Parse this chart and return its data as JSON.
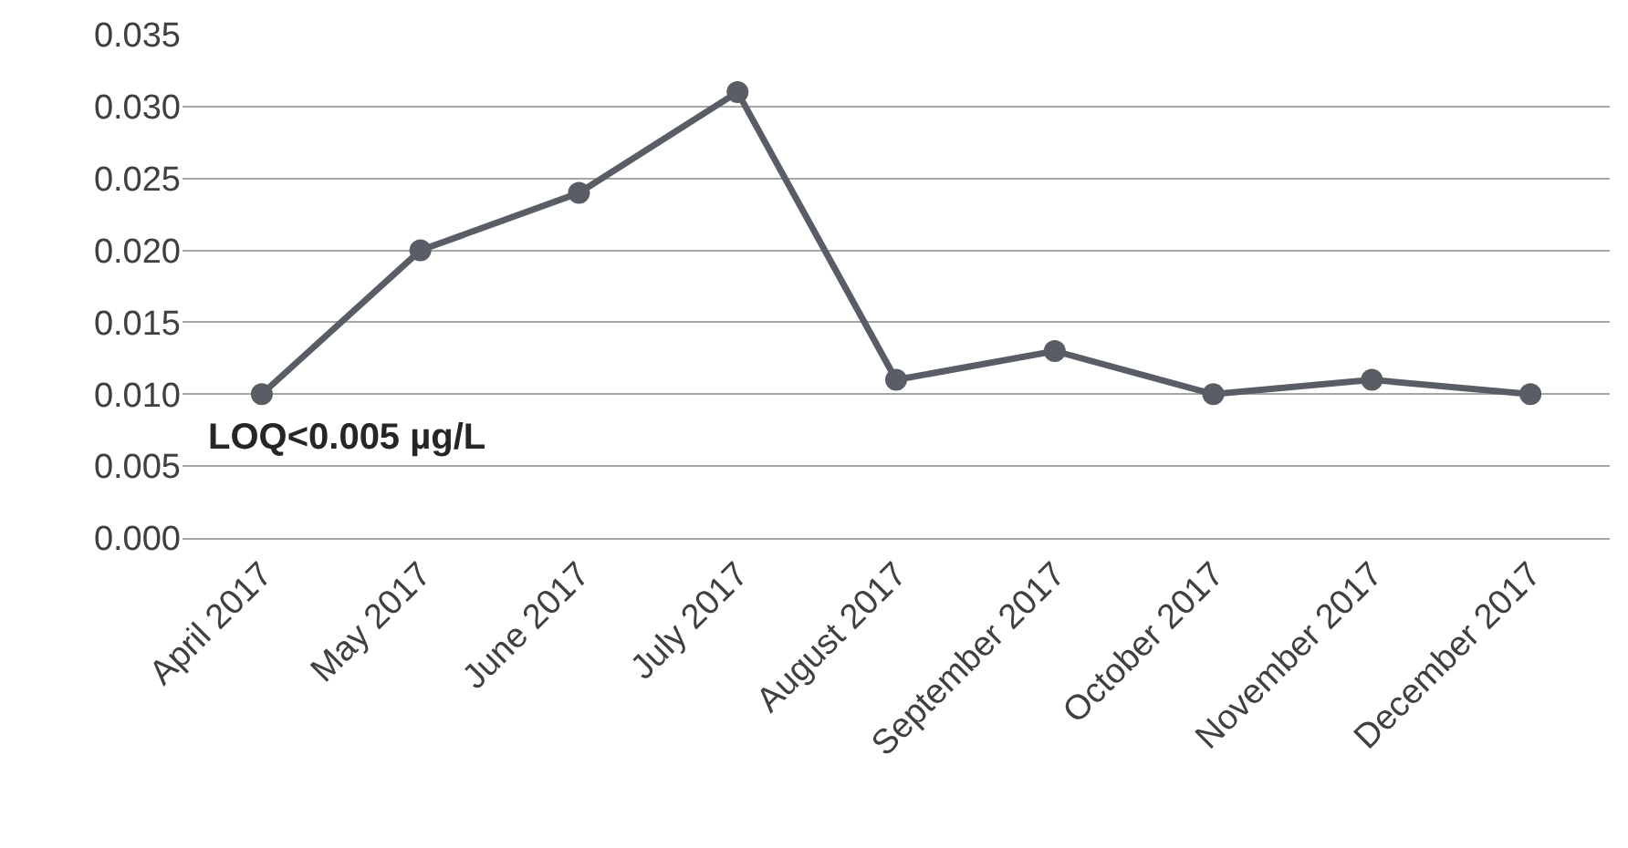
{
  "chart_data": {
    "type": "line",
    "categories": [
      "April 2017",
      "May 2017",
      "June 2017",
      "July 2017",
      "August 2017",
      "September 2017",
      "October 2017",
      "November 2017",
      "December 2017"
    ],
    "series": [
      {
        "color": "#595e66",
        "values": [
          0.01,
          0.02,
          0.024,
          0.031,
          0.011,
          0.013,
          0.01,
          0.011,
          0.01
        ]
      }
    ],
    "ylim": [
      0,
      0.035
    ],
    "yticks": [
      {
        "value": 0,
        "label": "0.000"
      },
      {
        "value": 0.005,
        "label": "0.005"
      },
      {
        "value": 0.01,
        "label": "0.010"
      },
      {
        "value": 0.015,
        "label": "0.015"
      },
      {
        "value": 0.02,
        "label": "0.020"
      },
      {
        "value": 0.025,
        "label": "0.025"
      },
      {
        "value": 0.03,
        "label": "0.030"
      },
      {
        "value": 0.035,
        "label": "0.035"
      }
    ],
    "grid": "y",
    "marker": "circle",
    "line_style": "solid",
    "legend": false,
    "annotations": [
      "LOQ<0.005 µg/L"
    ]
  }
}
